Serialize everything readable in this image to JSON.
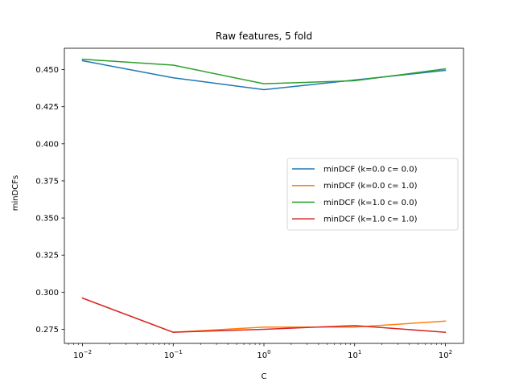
{
  "chart_data": {
    "type": "line",
    "title": "Raw features, 5 fold",
    "xlabel": "C",
    "ylabel": "minDCFs",
    "xscale": "log",
    "x": [
      0.01,
      0.1,
      1,
      10,
      100
    ],
    "xticks": [
      0.01,
      0.1,
      1,
      10,
      100
    ],
    "xtick_labels": [
      {
        "base": "10",
        "exp": "−2"
      },
      {
        "base": "10",
        "exp": "−1"
      },
      {
        "base": "10",
        "exp": "0"
      },
      {
        "base": "10",
        "exp": "1"
      },
      {
        "base": "10",
        "exp": "2"
      }
    ],
    "xlim": [
      0.00631,
      158.5
    ],
    "ylim": [
      0.2655,
      0.4644
    ],
    "yticks": [
      0.275,
      0.3,
      0.325,
      0.35,
      0.375,
      0.4,
      0.425,
      0.45
    ],
    "ytick_labels": [
      "0.275",
      "0.300",
      "0.325",
      "0.350",
      "0.375",
      "0.400",
      "0.425",
      "0.450"
    ],
    "grid": false,
    "legend_position": "center-right",
    "series": [
      {
        "name": "minDCF (k=0.0 c= 0.0)",
        "color": "#1f77b4",
        "values": [
          0.456,
          0.4445,
          0.4365,
          0.443,
          0.4495
        ]
      },
      {
        "name": "minDCF (k=0.0 c= 1.0)",
        "color": "#ff7f0e",
        "values": [
          0.296,
          0.273,
          0.2765,
          0.2765,
          0.2805
        ]
      },
      {
        "name": "minDCF (k=1.0 c= 0.0)",
        "color": "#2ca02c",
        "values": [
          0.457,
          0.453,
          0.4405,
          0.4425,
          0.4505
        ]
      },
      {
        "name": "minDCF (k=1.0 c= 1.0)",
        "color": "#d62728",
        "values": [
          0.296,
          0.273,
          0.275,
          0.2775,
          0.273
        ]
      }
    ]
  }
}
